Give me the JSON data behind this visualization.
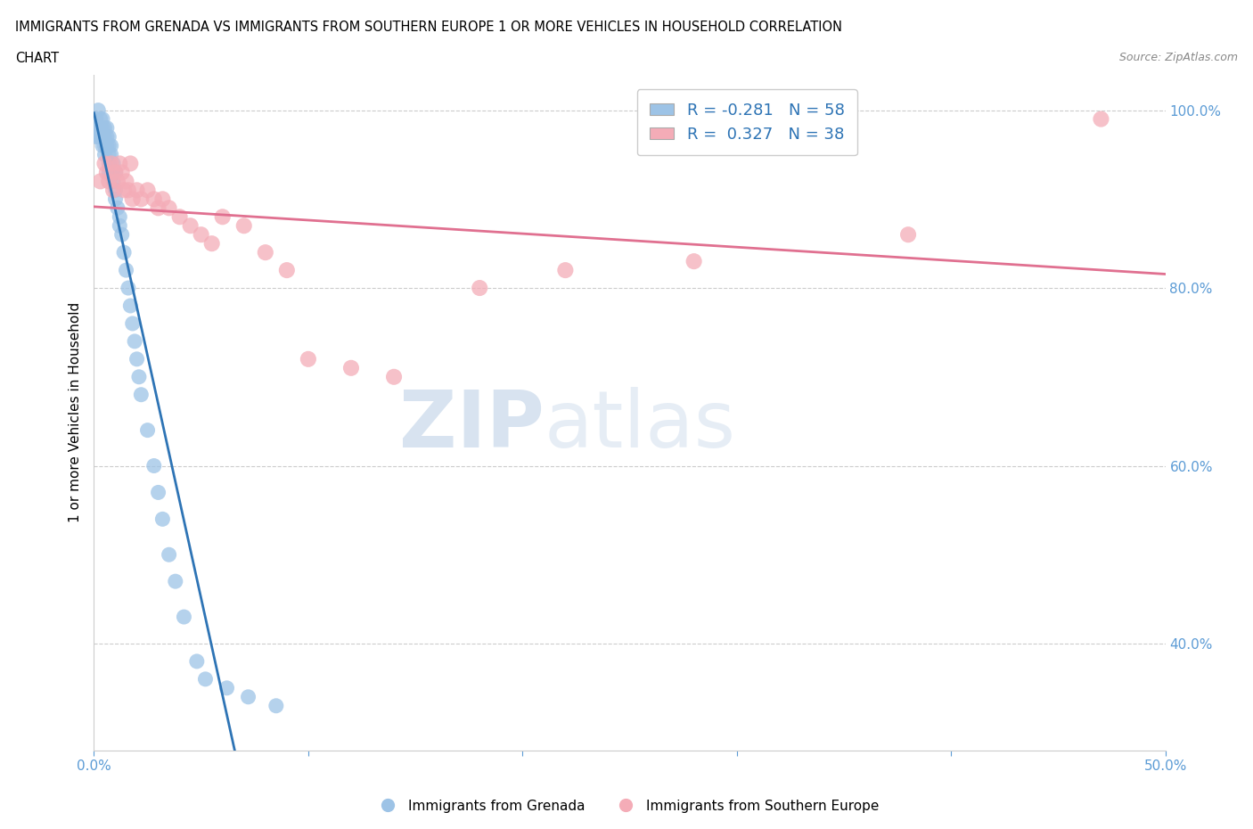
{
  "title_line1": "IMMIGRANTS FROM GRENADA VS IMMIGRANTS FROM SOUTHERN EUROPE 1 OR MORE VEHICLES IN HOUSEHOLD CORRELATION",
  "title_line2": "CHART",
  "source": "Source: ZipAtlas.com",
  "ylabel": "1 or more Vehicles in Household",
  "xlim": [
    0.0,
    0.5
  ],
  "ylim": [
    0.28,
    1.04
  ],
  "grenada_R": -0.281,
  "grenada_N": 58,
  "southern_R": 0.327,
  "southern_N": 38,
  "grenada_color": "#9dc3e6",
  "southern_color": "#f4acb7",
  "grenada_line_color": "#2e74b5",
  "southern_line_color": "#e07090",
  "legend_color": "#2e74b5",
  "background_color": "#ffffff",
  "grenada_x": [
    0.001,
    0.001,
    0.002,
    0.002,
    0.002,
    0.003,
    0.003,
    0.003,
    0.004,
    0.004,
    0.004,
    0.004,
    0.005,
    0.005,
    0.005,
    0.005,
    0.006,
    0.006,
    0.006,
    0.007,
    0.007,
    0.007,
    0.007,
    0.007,
    0.008,
    0.008,
    0.008,
    0.009,
    0.009,
    0.009,
    0.01,
    0.01,
    0.01,
    0.011,
    0.012,
    0.012,
    0.013,
    0.014,
    0.015,
    0.016,
    0.017,
    0.018,
    0.019,
    0.02,
    0.021,
    0.022,
    0.025,
    0.028,
    0.03,
    0.032,
    0.035,
    0.038,
    0.042,
    0.048,
    0.052,
    0.062,
    0.072,
    0.085
  ],
  "grenada_y": [
    0.97,
    0.99,
    0.98,
    0.97,
    1.0,
    0.98,
    0.97,
    0.99,
    0.99,
    0.98,
    0.97,
    0.96,
    0.98,
    0.97,
    0.96,
    0.95,
    0.98,
    0.97,
    0.96,
    0.97,
    0.96,
    0.95,
    0.94,
    0.93,
    0.96,
    0.95,
    0.93,
    0.94,
    0.93,
    0.92,
    0.93,
    0.91,
    0.9,
    0.89,
    0.88,
    0.87,
    0.86,
    0.84,
    0.82,
    0.8,
    0.78,
    0.76,
    0.74,
    0.72,
    0.7,
    0.68,
    0.64,
    0.6,
    0.57,
    0.54,
    0.5,
    0.47,
    0.43,
    0.38,
    0.36,
    0.35,
    0.34,
    0.33
  ],
  "southern_x": [
    0.003,
    0.005,
    0.006,
    0.007,
    0.008,
    0.009,
    0.01,
    0.011,
    0.012,
    0.013,
    0.014,
    0.015,
    0.016,
    0.017,
    0.018,
    0.02,
    0.022,
    0.025,
    0.028,
    0.03,
    0.032,
    0.035,
    0.04,
    0.045,
    0.05,
    0.055,
    0.06,
    0.07,
    0.08,
    0.09,
    0.1,
    0.12,
    0.14,
    0.18,
    0.22,
    0.28,
    0.38,
    0.47
  ],
  "southern_y": [
    0.92,
    0.94,
    0.93,
    0.92,
    0.94,
    0.91,
    0.93,
    0.92,
    0.94,
    0.93,
    0.91,
    0.92,
    0.91,
    0.94,
    0.9,
    0.91,
    0.9,
    0.91,
    0.9,
    0.89,
    0.9,
    0.89,
    0.88,
    0.87,
    0.86,
    0.85,
    0.88,
    0.87,
    0.84,
    0.82,
    0.72,
    0.71,
    0.7,
    0.8,
    0.82,
    0.83,
    0.86,
    0.99
  ],
  "grid_color": "#cccccc",
  "watermark_zip": "ZIP",
  "watermark_atlas": "atlas"
}
